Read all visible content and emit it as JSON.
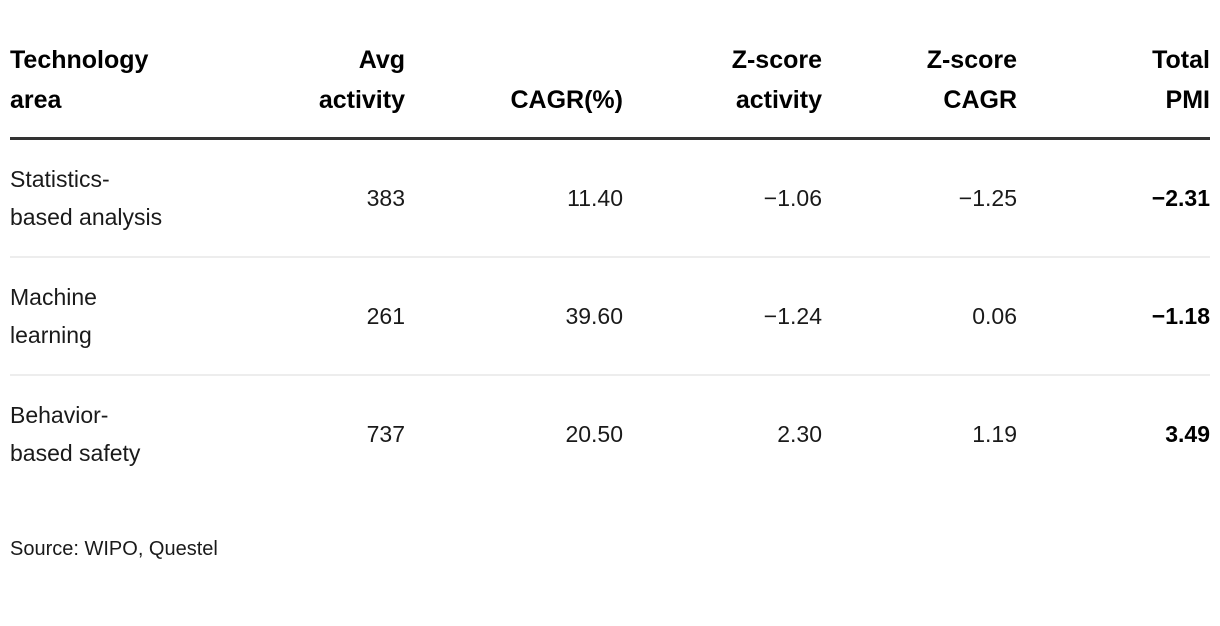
{
  "chart_data": {
    "type": "table",
    "title": "",
    "columns": [
      {
        "id": "technology-area",
        "lines": [
          "Technology",
          "area"
        ],
        "align": "left",
        "emphasis": false
      },
      {
        "id": "avg-activity",
        "lines": [
          "Avg",
          "activity"
        ],
        "align": "right",
        "emphasis": false
      },
      {
        "id": "cagr-percent",
        "lines": [
          "CAGR(%)"
        ],
        "align": "right",
        "emphasis": false
      },
      {
        "id": "z-score-activity",
        "lines": [
          "Z-score",
          "activity"
        ],
        "align": "right",
        "emphasis": false
      },
      {
        "id": "z-score-cagr",
        "lines": [
          "Z-score",
          "CAGR"
        ],
        "align": "right",
        "emphasis": false
      },
      {
        "id": "total-pmi",
        "lines": [
          "Total",
          "PMI"
        ],
        "align": "right",
        "emphasis": true
      }
    ],
    "rows": [
      {
        "name": "statistics-based-analysis",
        "cells": [
          {
            "lines": [
              "Statistics-",
              "based analysis"
            ]
          },
          {
            "lines": [
              "383"
            ]
          },
          {
            "lines": [
              "11.40"
            ]
          },
          {
            "lines": [
              "−1.06"
            ]
          },
          {
            "lines": [
              "−1.25"
            ]
          },
          {
            "lines": [
              "−2.31"
            ]
          }
        ]
      },
      {
        "name": "machine-learning",
        "cells": [
          {
            "lines": [
              "Machine",
              "learning"
            ]
          },
          {
            "lines": [
              "261"
            ]
          },
          {
            "lines": [
              "39.60"
            ]
          },
          {
            "lines": [
              "−1.24"
            ]
          },
          {
            "lines": [
              "0.06"
            ]
          },
          {
            "lines": [
              "−1.18"
            ]
          }
        ]
      },
      {
        "name": "behavior-based-safety",
        "cells": [
          {
            "lines": [
              "Behavior-",
              "based safety"
            ]
          },
          {
            "lines": [
              "737"
            ]
          },
          {
            "lines": [
              "20.50"
            ]
          },
          {
            "lines": [
              "2.30"
            ]
          },
          {
            "lines": [
              "1.19"
            ]
          },
          {
            "lines": [
              "3.49"
            ]
          }
        ]
      }
    ],
    "source": "Source: WIPO, Questel",
    "colors": {
      "text": "#1a1a1a",
      "heading": "#000000",
      "header_rule": "#333333",
      "row_rule": "#ededed",
      "background": "#ffffff"
    }
  }
}
